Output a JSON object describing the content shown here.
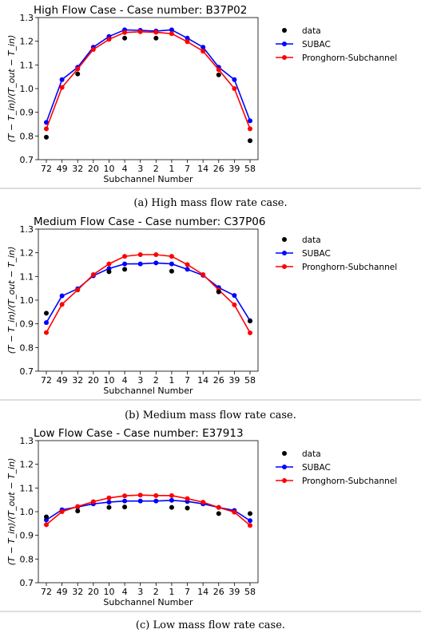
{
  "captions": [
    "(a) High mass flow rate case.",
    "(b) Medium mass flow rate case.",
    "(c) Low mass flow rate case."
  ],
  "colors": {
    "data": "#000000",
    "subac": "#0000ff",
    "pronghorn": "#ff0000",
    "divider": "#bbbbbb"
  },
  "chart_data": [
    {
      "type": "line",
      "title": "High Flow Case - Case number: B37P02",
      "xlabel": "Subchannel Number",
      "ylabel": "(T − T_in)/(T_out − T_in)",
      "categories": [
        "72",
        "49",
        "32",
        "20",
        "10",
        "4",
        "3",
        "2",
        "1",
        "7",
        "14",
        "26",
        "39",
        "58"
      ],
      "ylim": [
        0.7,
        1.3
      ],
      "yticks": [
        "0.7",
        "0.8",
        "0.9",
        "1.0",
        "1.1",
        "1.2",
        "1.3"
      ],
      "grid": false,
      "legend": "outside-right",
      "series": [
        {
          "name": "data",
          "style": "markers",
          "values": [
            0.795,
            null,
            1.062,
            null,
            null,
            1.213,
            null,
            1.213,
            null,
            null,
            null,
            1.058,
            null,
            0.78
          ]
        },
        {
          "name": "SUBAC",
          "style": "line-markers",
          "values": [
            0.857,
            1.038,
            1.09,
            1.175,
            1.22,
            1.248,
            1.246,
            1.243,
            1.248,
            1.213,
            1.175,
            1.09,
            1.038,
            0.864
          ]
        },
        {
          "name": "Pronghorn-Subchannel",
          "style": "line-markers",
          "values": [
            0.83,
            1.005,
            1.083,
            1.165,
            1.208,
            1.237,
            1.24,
            1.238,
            1.232,
            1.198,
            1.158,
            1.08,
            1.0,
            0.83
          ]
        }
      ]
    },
    {
      "type": "line",
      "title": "Medium Flow Case - Case number: C37P06",
      "xlabel": "Subchannel Number",
      "ylabel": "(T − T_in)/(T_out − T_in)",
      "categories": [
        "72",
        "49",
        "32",
        "20",
        "10",
        "4",
        "3",
        "2",
        "1",
        "7",
        "14",
        "26",
        "39",
        "58"
      ],
      "ylim": [
        0.7,
        1.3
      ],
      "yticks": [
        "0.7",
        "0.8",
        "0.9",
        "1.0",
        "1.1",
        "1.2",
        "1.3"
      ],
      "grid": false,
      "legend": "outside-right",
      "series": [
        {
          "name": "data",
          "style": "markers",
          "values": [
            0.945,
            null,
            null,
            null,
            1.12,
            1.13,
            null,
            null,
            1.122,
            null,
            null,
            1.035,
            null,
            0.912
          ]
        },
        {
          "name": "SUBAC",
          "style": "line-markers",
          "values": [
            0.905,
            1.018,
            1.048,
            1.103,
            1.133,
            1.153,
            1.153,
            1.157,
            1.153,
            1.13,
            1.105,
            1.053,
            1.02,
            0.913
          ]
        },
        {
          "name": "Pronghorn-Subchannel",
          "style": "line-markers",
          "values": [
            0.863,
            0.982,
            1.043,
            1.108,
            1.153,
            1.185,
            1.192,
            1.192,
            1.185,
            1.15,
            1.108,
            1.043,
            0.98,
            0.862
          ]
        }
      ]
    },
    {
      "type": "line",
      "title": "Low Flow Case - Case number: E37913",
      "xlabel": "Subchannel Number",
      "ylabel": "(T − T_in)/(T_out − T_in)",
      "categories": [
        "72",
        "49",
        "32",
        "20",
        "10",
        "4",
        "3",
        "2",
        "1",
        "7",
        "14",
        "26",
        "39",
        "58"
      ],
      "ylim": [
        0.7,
        1.3
      ],
      "yticks": [
        "0.7",
        "0.8",
        "0.9",
        "1.0",
        "1.1",
        "1.2",
        "1.3"
      ],
      "grid": false,
      "legend": "outside-right",
      "series": [
        {
          "name": "data",
          "style": "markers",
          "values": [
            0.978,
            null,
            1.003,
            null,
            1.018,
            1.02,
            null,
            null,
            1.018,
            1.015,
            null,
            0.992,
            null,
            0.992
          ]
        },
        {
          "name": "SUBAC",
          "style": "line-markers",
          "values": [
            0.965,
            1.008,
            1.02,
            1.033,
            1.04,
            1.045,
            1.045,
            1.045,
            1.048,
            1.043,
            1.033,
            1.018,
            1.005,
            0.962
          ]
        },
        {
          "name": "Pronghorn-Subchannel",
          "style": "line-markers",
          "values": [
            0.945,
            1.0,
            1.022,
            1.042,
            1.058,
            1.067,
            1.07,
            1.068,
            1.068,
            1.055,
            1.04,
            1.018,
            0.998,
            0.942
          ]
        }
      ]
    }
  ]
}
